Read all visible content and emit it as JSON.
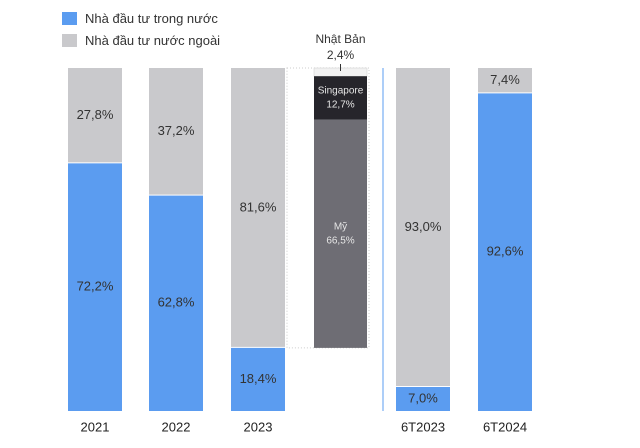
{
  "chart_data": {
    "type": "bar",
    "stacked": true,
    "ylim": [
      0,
      100
    ],
    "grid": false,
    "legend_position": "top-left",
    "categories": [
      "2021",
      "2022",
      "2023",
      "6T2023",
      "6T2024"
    ],
    "series": [
      {
        "name": "Nhà đầu tư trong nước",
        "color": "#5b9cf0",
        "values": [
          72.2,
          62.8,
          18.4,
          7.0,
          92.6
        ],
        "labels": [
          "72,2%",
          "62,8%",
          "18,4%",
          "7,0%",
          "92,6%"
        ]
      },
      {
        "name": "Nhà đầu tư nước ngoài",
        "color": "#c9c9cc",
        "values": [
          27.8,
          37.2,
          81.6,
          93.0,
          7.4
        ],
        "labels": [
          "27,8%",
          "37,2%",
          "81,6%",
          "93,0%",
          "7,4%"
        ]
      }
    ],
    "breakdown_of": "2023",
    "breakdown": [
      {
        "name": "Mỹ",
        "value": 66.5,
        "label": "66,5%",
        "color": "#6e6d74"
      },
      {
        "name": "Singapore",
        "value": 12.7,
        "label": "12,7%",
        "color": "#26252b"
      },
      {
        "name": "Nhật Bản",
        "value": 2.4,
        "label": "2,4%",
        "color": "#f2f2f2"
      }
    ],
    "separator_color": "#5b9cf0"
  }
}
